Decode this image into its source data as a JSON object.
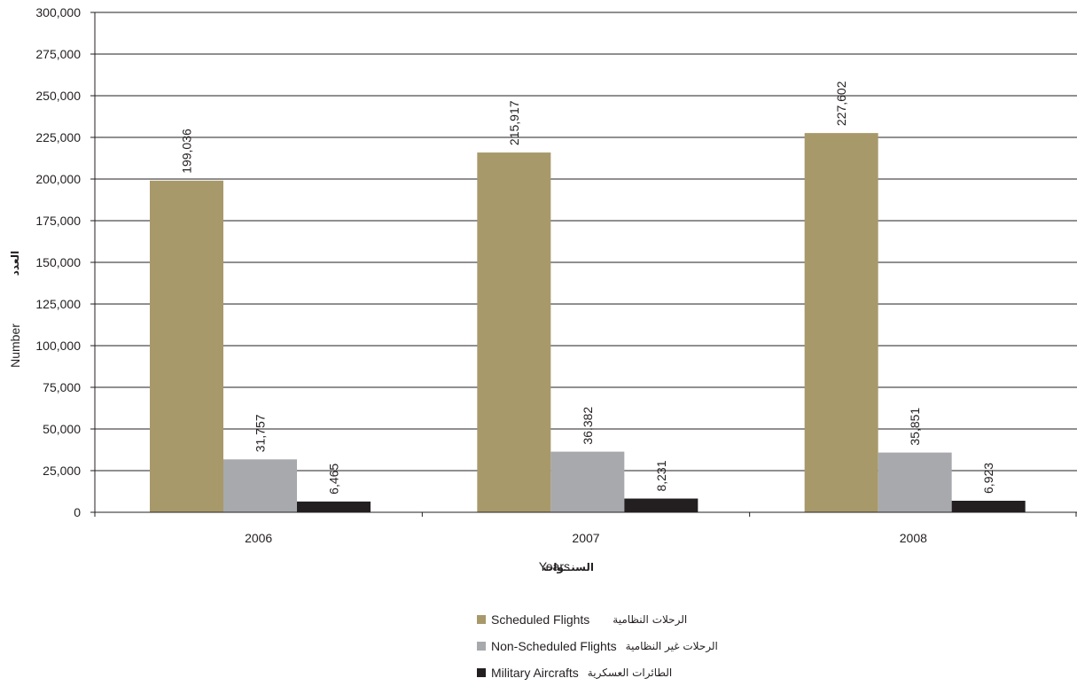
{
  "chart_data": {
    "type": "bar",
    "categories": [
      "2006",
      "2007",
      "2008"
    ],
    "series": [
      {
        "name": "Scheduled Flights",
        "name_ar": "الرحلات النظامية",
        "color": "#a8996b",
        "values": [
          199036,
          215917,
          227602
        ],
        "labels": [
          "199,036",
          "215,917",
          "227,602"
        ]
      },
      {
        "name": "Non-Scheduled Flights",
        "name_ar": "الرحلات غير النظامية",
        "color": "#a7a9ac",
        "values": [
          31757,
          36382,
          35851
        ],
        "labels": [
          "31,757",
          "36,382",
          "35,851"
        ]
      },
      {
        "name": "Military Aircrafts",
        "name_ar": "الطائرات العسكرية",
        "color": "#231f20",
        "values": [
          6465,
          8231,
          6923
        ],
        "labels": [
          "6,465",
          "8,231",
          "6,923"
        ]
      }
    ],
    "ylim": [
      0,
      300000
    ],
    "yticks": [
      0,
      25000,
      50000,
      75000,
      100000,
      125000,
      150000,
      175000,
      200000,
      225000,
      250000,
      275000,
      300000
    ],
    "ytick_labels": [
      "0",
      "25,000",
      "50,000",
      "75,000",
      "100,000",
      "125,000",
      "150,000",
      "175,000",
      "200,000",
      "225,000",
      "250,000",
      "275,000",
      "300,000"
    ],
    "xlabel": "Years",
    "xlabel_ar": "السنــوات",
    "ylabel": "Number",
    "ylabel_ar": "العدد",
    "grid": true,
    "legend_position": "bottom-center"
  }
}
